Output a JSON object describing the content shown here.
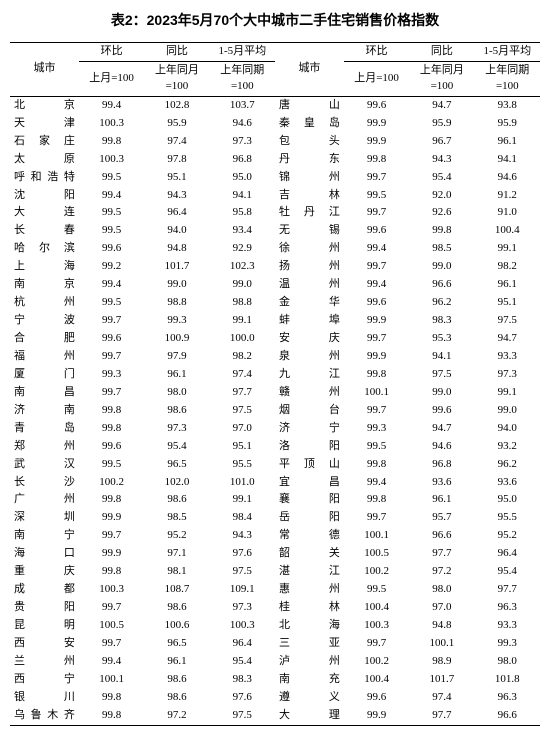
{
  "title": "表2：2023年5月70个大中城市二手住宅销售价格指数",
  "header": {
    "city": "城市",
    "mom_group": "环比",
    "yoy_group": "同比",
    "avg_group": "1-5月平均",
    "mom_sub": "上月=100",
    "yoy_sub": "上年同月=100",
    "avg_sub": "上年同期=100"
  },
  "style": {
    "background_color": "#ffffff",
    "text_color": "#000000",
    "border_color": "#000000",
    "title_fontsize": 14,
    "body_fontsize": 11,
    "col_widths_pct": {
      "city": 13,
      "num": 12.33
    }
  },
  "rows": [
    {
      "l": {
        "city": "北　京",
        "mom": "99.4",
        "yoy": "102.8",
        "avg": "103.7"
      },
      "r": {
        "city": "唐　山",
        "mom": "99.6",
        "yoy": "94.7",
        "avg": "93.8"
      }
    },
    {
      "l": {
        "city": "天　津",
        "mom": "100.3",
        "yoy": "95.9",
        "avg": "94.6"
      },
      "r": {
        "city": "秦皇岛",
        "mom": "99.9",
        "yoy": "95.9",
        "avg": "95.9"
      }
    },
    {
      "l": {
        "city": "石家庄",
        "mom": "99.8",
        "yoy": "97.4",
        "avg": "97.3"
      },
      "r": {
        "city": "包　头",
        "mom": "99.9",
        "yoy": "96.7",
        "avg": "96.1"
      }
    },
    {
      "l": {
        "city": "太　原",
        "mom": "100.3",
        "yoy": "97.8",
        "avg": "96.8"
      },
      "r": {
        "city": "丹　东",
        "mom": "99.8",
        "yoy": "94.3",
        "avg": "94.1"
      }
    },
    {
      "l": {
        "city": "呼和浩特",
        "mom": "99.5",
        "yoy": "95.1",
        "avg": "95.0"
      },
      "r": {
        "city": "锦　州",
        "mom": "99.7",
        "yoy": "95.4",
        "avg": "94.6"
      }
    },
    {
      "l": {
        "city": "沈　阳",
        "mom": "99.4",
        "yoy": "94.3",
        "avg": "94.1"
      },
      "r": {
        "city": "吉　林",
        "mom": "99.5",
        "yoy": "92.0",
        "avg": "91.2"
      }
    },
    {
      "l": {
        "city": "大　连",
        "mom": "99.5",
        "yoy": "96.4",
        "avg": "95.8"
      },
      "r": {
        "city": "牡丹江",
        "mom": "99.7",
        "yoy": "92.6",
        "avg": "91.0"
      }
    },
    {
      "l": {
        "city": "长　春",
        "mom": "99.5",
        "yoy": "94.0",
        "avg": "93.4"
      },
      "r": {
        "city": "无　锡",
        "mom": "99.6",
        "yoy": "99.8",
        "avg": "100.4"
      }
    },
    {
      "l": {
        "city": "哈尔滨",
        "mom": "99.6",
        "yoy": "94.8",
        "avg": "92.9"
      },
      "r": {
        "city": "徐　州",
        "mom": "99.4",
        "yoy": "98.5",
        "avg": "99.1"
      }
    },
    {
      "l": {
        "city": "上　海",
        "mom": "99.2",
        "yoy": "101.7",
        "avg": "102.3"
      },
      "r": {
        "city": "扬　州",
        "mom": "99.7",
        "yoy": "99.0",
        "avg": "98.2"
      }
    },
    {
      "l": {
        "city": "南　京",
        "mom": "99.4",
        "yoy": "99.0",
        "avg": "99.0"
      },
      "r": {
        "city": "温　州",
        "mom": "99.4",
        "yoy": "96.6",
        "avg": "96.1"
      }
    },
    {
      "l": {
        "city": "杭　州",
        "mom": "99.5",
        "yoy": "98.8",
        "avg": "98.8"
      },
      "r": {
        "city": "金　华",
        "mom": "99.6",
        "yoy": "96.2",
        "avg": "95.1"
      }
    },
    {
      "l": {
        "city": "宁　波",
        "mom": "99.7",
        "yoy": "99.3",
        "avg": "99.1"
      },
      "r": {
        "city": "蚌　埠",
        "mom": "99.9",
        "yoy": "98.3",
        "avg": "97.5"
      }
    },
    {
      "l": {
        "city": "合　肥",
        "mom": "99.6",
        "yoy": "100.9",
        "avg": "100.0"
      },
      "r": {
        "city": "安　庆",
        "mom": "99.7",
        "yoy": "95.3",
        "avg": "94.7"
      }
    },
    {
      "l": {
        "city": "福　州",
        "mom": "99.7",
        "yoy": "97.9",
        "avg": "98.2"
      },
      "r": {
        "city": "泉　州",
        "mom": "99.9",
        "yoy": "94.1",
        "avg": "93.3"
      }
    },
    {
      "l": {
        "city": "厦　门",
        "mom": "99.3",
        "yoy": "96.1",
        "avg": "97.4"
      },
      "r": {
        "city": "九　江",
        "mom": "99.8",
        "yoy": "97.5",
        "avg": "97.3"
      }
    },
    {
      "l": {
        "city": "南　昌",
        "mom": "99.7",
        "yoy": "98.0",
        "avg": "97.7"
      },
      "r": {
        "city": "赣　州",
        "mom": "100.1",
        "yoy": "99.0",
        "avg": "99.1"
      }
    },
    {
      "l": {
        "city": "济　南",
        "mom": "99.8",
        "yoy": "98.6",
        "avg": "97.5"
      },
      "r": {
        "city": "烟　台",
        "mom": "99.7",
        "yoy": "99.6",
        "avg": "99.0"
      }
    },
    {
      "l": {
        "city": "青　岛",
        "mom": "99.8",
        "yoy": "97.3",
        "avg": "97.0"
      },
      "r": {
        "city": "济　宁",
        "mom": "99.3",
        "yoy": "94.7",
        "avg": "94.0"
      }
    },
    {
      "l": {
        "city": "郑　州",
        "mom": "99.6",
        "yoy": "95.4",
        "avg": "95.1"
      },
      "r": {
        "city": "洛　阳",
        "mom": "99.5",
        "yoy": "94.6",
        "avg": "93.2"
      }
    },
    {
      "l": {
        "city": "武　汉",
        "mom": "99.5",
        "yoy": "96.5",
        "avg": "95.5"
      },
      "r": {
        "city": "平顶山",
        "mom": "99.8",
        "yoy": "96.8",
        "avg": "96.2"
      }
    },
    {
      "l": {
        "city": "长　沙",
        "mom": "100.2",
        "yoy": "102.0",
        "avg": "101.0"
      },
      "r": {
        "city": "宜　昌",
        "mom": "99.4",
        "yoy": "93.6",
        "avg": "93.6"
      }
    },
    {
      "l": {
        "city": "广　州",
        "mom": "99.8",
        "yoy": "98.6",
        "avg": "99.1"
      },
      "r": {
        "city": "襄　阳",
        "mom": "99.8",
        "yoy": "96.1",
        "avg": "95.0"
      }
    },
    {
      "l": {
        "city": "深　圳",
        "mom": "99.9",
        "yoy": "98.5",
        "avg": "98.4"
      },
      "r": {
        "city": "岳　阳",
        "mom": "99.7",
        "yoy": "95.7",
        "avg": "95.5"
      }
    },
    {
      "l": {
        "city": "南　宁",
        "mom": "99.7",
        "yoy": "95.2",
        "avg": "94.3"
      },
      "r": {
        "city": "常　德",
        "mom": "100.1",
        "yoy": "96.6",
        "avg": "95.2"
      }
    },
    {
      "l": {
        "city": "海　口",
        "mom": "99.9",
        "yoy": "97.1",
        "avg": "97.6"
      },
      "r": {
        "city": "韶　关",
        "mom": "100.5",
        "yoy": "97.7",
        "avg": "96.4"
      }
    },
    {
      "l": {
        "city": "重　庆",
        "mom": "99.8",
        "yoy": "98.1",
        "avg": "97.5"
      },
      "r": {
        "city": "湛　江",
        "mom": "100.2",
        "yoy": "97.2",
        "avg": "95.4"
      }
    },
    {
      "l": {
        "city": "成　都",
        "mom": "100.3",
        "yoy": "108.7",
        "avg": "109.1"
      },
      "r": {
        "city": "惠　州",
        "mom": "99.5",
        "yoy": "98.0",
        "avg": "97.7"
      }
    },
    {
      "l": {
        "city": "贵　阳",
        "mom": "99.7",
        "yoy": "98.6",
        "avg": "97.3"
      },
      "r": {
        "city": "桂　林",
        "mom": "100.4",
        "yoy": "97.0",
        "avg": "96.3"
      }
    },
    {
      "l": {
        "city": "昆　明",
        "mom": "100.5",
        "yoy": "100.6",
        "avg": "100.3"
      },
      "r": {
        "city": "北　海",
        "mom": "100.3",
        "yoy": "94.8",
        "avg": "93.3"
      }
    },
    {
      "l": {
        "city": "西　安",
        "mom": "99.7",
        "yoy": "96.5",
        "avg": "96.4"
      },
      "r": {
        "city": "三　亚",
        "mom": "99.7",
        "yoy": "100.1",
        "avg": "99.3"
      }
    },
    {
      "l": {
        "city": "兰　州",
        "mom": "99.4",
        "yoy": "96.1",
        "avg": "95.4"
      },
      "r": {
        "city": "泸　州",
        "mom": "100.2",
        "yoy": "98.9",
        "avg": "98.0"
      }
    },
    {
      "l": {
        "city": "西　宁",
        "mom": "100.1",
        "yoy": "98.6",
        "avg": "98.3"
      },
      "r": {
        "city": "南　充",
        "mom": "100.4",
        "yoy": "101.7",
        "avg": "101.8"
      }
    },
    {
      "l": {
        "city": "银　川",
        "mom": "99.8",
        "yoy": "98.6",
        "avg": "97.6"
      },
      "r": {
        "city": "遵　义",
        "mom": "99.6",
        "yoy": "97.4",
        "avg": "96.3"
      }
    },
    {
      "l": {
        "city": "乌鲁木齐",
        "mom": "99.8",
        "yoy": "97.2",
        "avg": "97.5"
      },
      "r": {
        "city": "大　理",
        "mom": "99.9",
        "yoy": "97.7",
        "avg": "96.6"
      }
    }
  ]
}
